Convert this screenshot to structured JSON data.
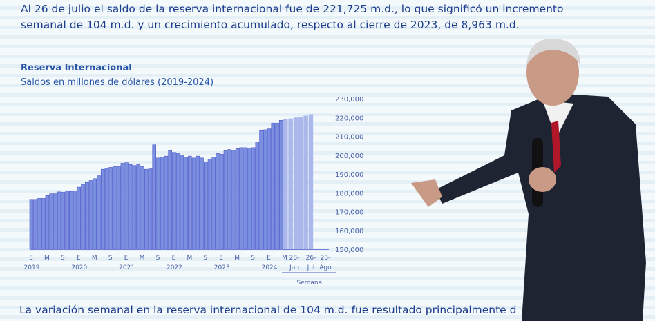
{
  "slide": {
    "line1": "Al 26 de julio el saldo de la reserva internacional fue de 221,725 m.d., lo que significó un incremento",
    "line2": "semanal de 104 m.d. y un crecimiento acumulado, respecto al cierre de 2023, de 8,963 m.d.",
    "bottom": "La variación semanal en la reserva internacional de 104 m.d. fue resultado principalmente d"
  },
  "chart_data": {
    "type": "bar",
    "title": "Reserva Internacional",
    "subtitle": "Saldos en millones de dólares (2019-2024)",
    "ylim": [
      150000,
      230000
    ],
    "yticks": [
      "150,000",
      "160,000",
      "170,000",
      "180,000",
      "190,000",
      "200,000",
      "210,000",
      "220,000",
      "230,000"
    ],
    "bar_color": "#7b8fe0",
    "monthly_x_labels": [
      "E",
      "M",
      "S",
      "E",
      "M",
      "S",
      "E",
      "M",
      "S",
      "E",
      "M",
      "S",
      "E",
      "M",
      "S",
      "E",
      "M"
    ],
    "year_labels": [
      "2019",
      "2020",
      "2021",
      "2022",
      "2023",
      "2024"
    ],
    "weekly_x_labels": [
      "28-",
      "26-",
      "23-"
    ],
    "weekly_x_labels2": [
      "Jun",
      "Jul",
      "Ago"
    ],
    "weekly_group_label": "Semanal",
    "monthly_values": [
      176500,
      176500,
      177000,
      177000,
      178500,
      179500,
      179500,
      180500,
      180300,
      181000,
      180800,
      181000,
      183000,
      184500,
      185500,
      186500,
      187500,
      189500,
      192500,
      193000,
      193500,
      194000,
      194000,
      195700,
      196000,
      195000,
      194500,
      195000,
      194000,
      192500,
      193000,
      205500,
      198500,
      199000,
      199500,
      202400,
      201500,
      201000,
      200000,
      199000,
      199500,
      198500,
      199500,
      198500,
      196500,
      198000,
      199000,
      201000,
      200500,
      202500,
      203000,
      202500,
      203500,
      204000,
      204000,
      203800,
      204000,
      207000,
      213000,
      213500,
      214000,
      217000,
      217000,
      218500
    ],
    "weekly_values": [
      219000,
      219500,
      220000,
      220500,
      221000,
      221725,
      null,
      null,
      null
    ]
  }
}
